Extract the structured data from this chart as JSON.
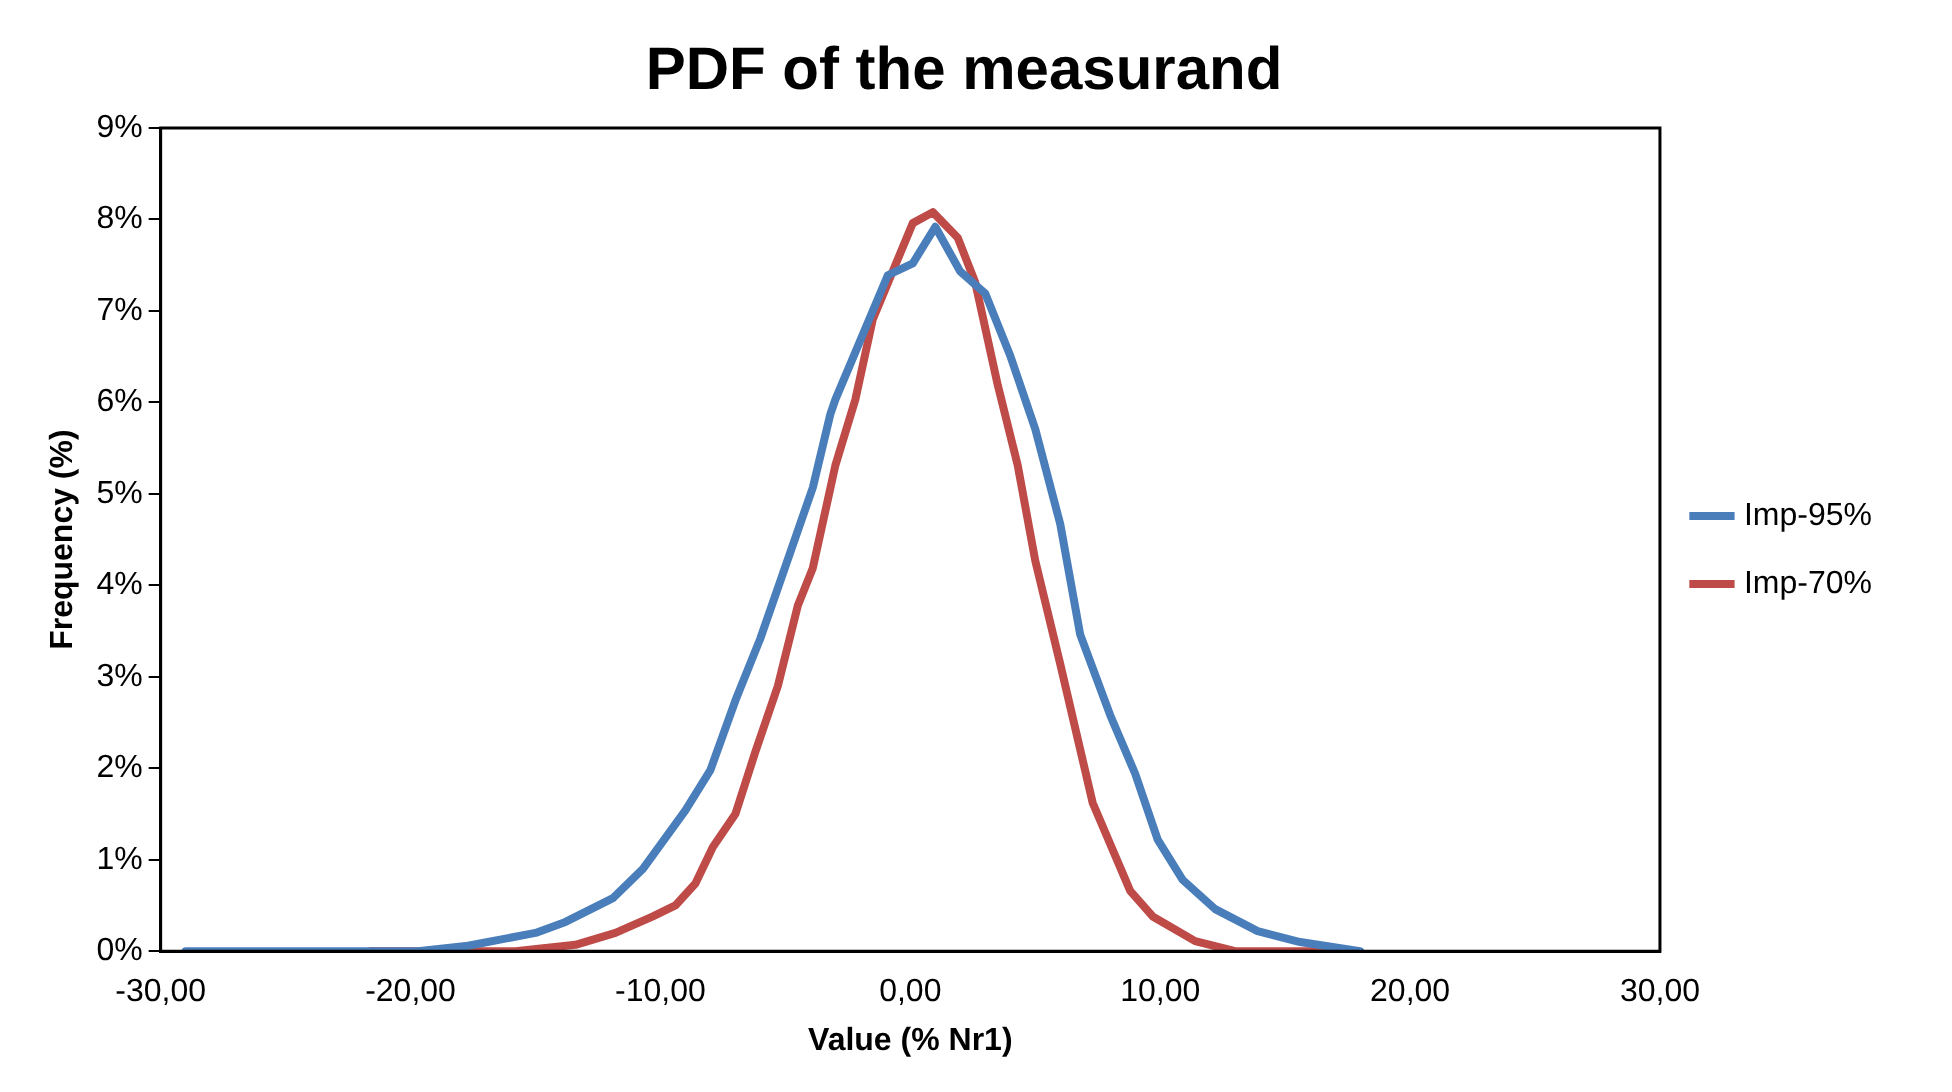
{
  "chart_data": {
    "type": "line",
    "title": "PDF of the measurand",
    "xlabel": "Value (% Nr1)",
    "ylabel": "Frequency (%)",
    "xlim": [
      -30,
      30
    ],
    "xticks": [
      {
        "value": -30,
        "label": "-30,00"
      },
      {
        "value": -20,
        "label": "-20,00"
      },
      {
        "value": -10,
        "label": "-10,00"
      },
      {
        "value": 0,
        "label": "0,00"
      },
      {
        "value": 10,
        "label": "10,00"
      },
      {
        "value": 20,
        "label": "20,00"
      },
      {
        "value": 30,
        "label": "30,00"
      }
    ],
    "ylim": [
      0,
      9
    ],
    "yticks": [
      {
        "value": 0,
        "label": "0%"
      },
      {
        "value": 1,
        "label": "1%"
      },
      {
        "value": 2,
        "label": "2%"
      },
      {
        "value": 3,
        "label": "3%"
      },
      {
        "value": 4,
        "label": "4%"
      },
      {
        "value": 5,
        "label": "5%"
      },
      {
        "value": 6,
        "label": "6%"
      },
      {
        "value": 7,
        "label": "7%"
      },
      {
        "value": 8,
        "label": "8%"
      },
      {
        "value": 9,
        "label": "9%"
      }
    ],
    "grid": false,
    "legend": "right",
    "marker": "none",
    "line_style": "solid",
    "series": [
      {
        "name": "Imp-95%",
        "color": "#4a7ebb",
        "x": [
          -29,
          -24,
          -19.7,
          -17.7,
          -15,
          -13.8,
          -11.9,
          -10.7,
          -9,
          -8,
          -7,
          -6,
          -3.9,
          -3.2,
          -3,
          -0.9,
          0.1,
          1,
          2,
          3,
          4,
          5,
          6,
          6.8,
          8,
          9,
          9.9,
          10.9,
          12.2,
          13.9,
          15.6,
          18
        ],
        "values": [
          0,
          0,
          0,
          0.06,
          0.2,
          0.32,
          0.58,
          0.9,
          1.54,
          1.98,
          2.74,
          3.42,
          5.07,
          5.87,
          6.03,
          7.39,
          7.52,
          7.92,
          7.43,
          7.19,
          6.51,
          5.71,
          4.67,
          3.46,
          2.58,
          1.94,
          1.22,
          0.78,
          0.46,
          0.22,
          0.1,
          0
        ]
      },
      {
        "name": "Imp-70%",
        "color": "#be4b48",
        "x": [
          -21.6,
          -15.8,
          -13.4,
          -11.8,
          -10.3,
          -9.4,
          -8.6,
          -7.9,
          -7,
          -6.2,
          -5.3,
          -4.5,
          -3.9,
          -3,
          -2.2,
          -1.5,
          0.1,
          0.9,
          1.9,
          2.6,
          3.5,
          4.3,
          5,
          6,
          7.3,
          8.8,
          9.7,
          11.4,
          13,
          17.9
        ],
        "values": [
          0,
          0,
          0.07,
          0.2,
          0.38,
          0.5,
          0.74,
          1.14,
          1.5,
          2.18,
          2.9,
          3.78,
          4.19,
          5.31,
          6.03,
          6.91,
          7.96,
          8.08,
          7.8,
          7.31,
          6.19,
          5.31,
          4.27,
          3.14,
          1.62,
          0.66,
          0.38,
          0.11,
          0,
          0
        ]
      }
    ]
  }
}
